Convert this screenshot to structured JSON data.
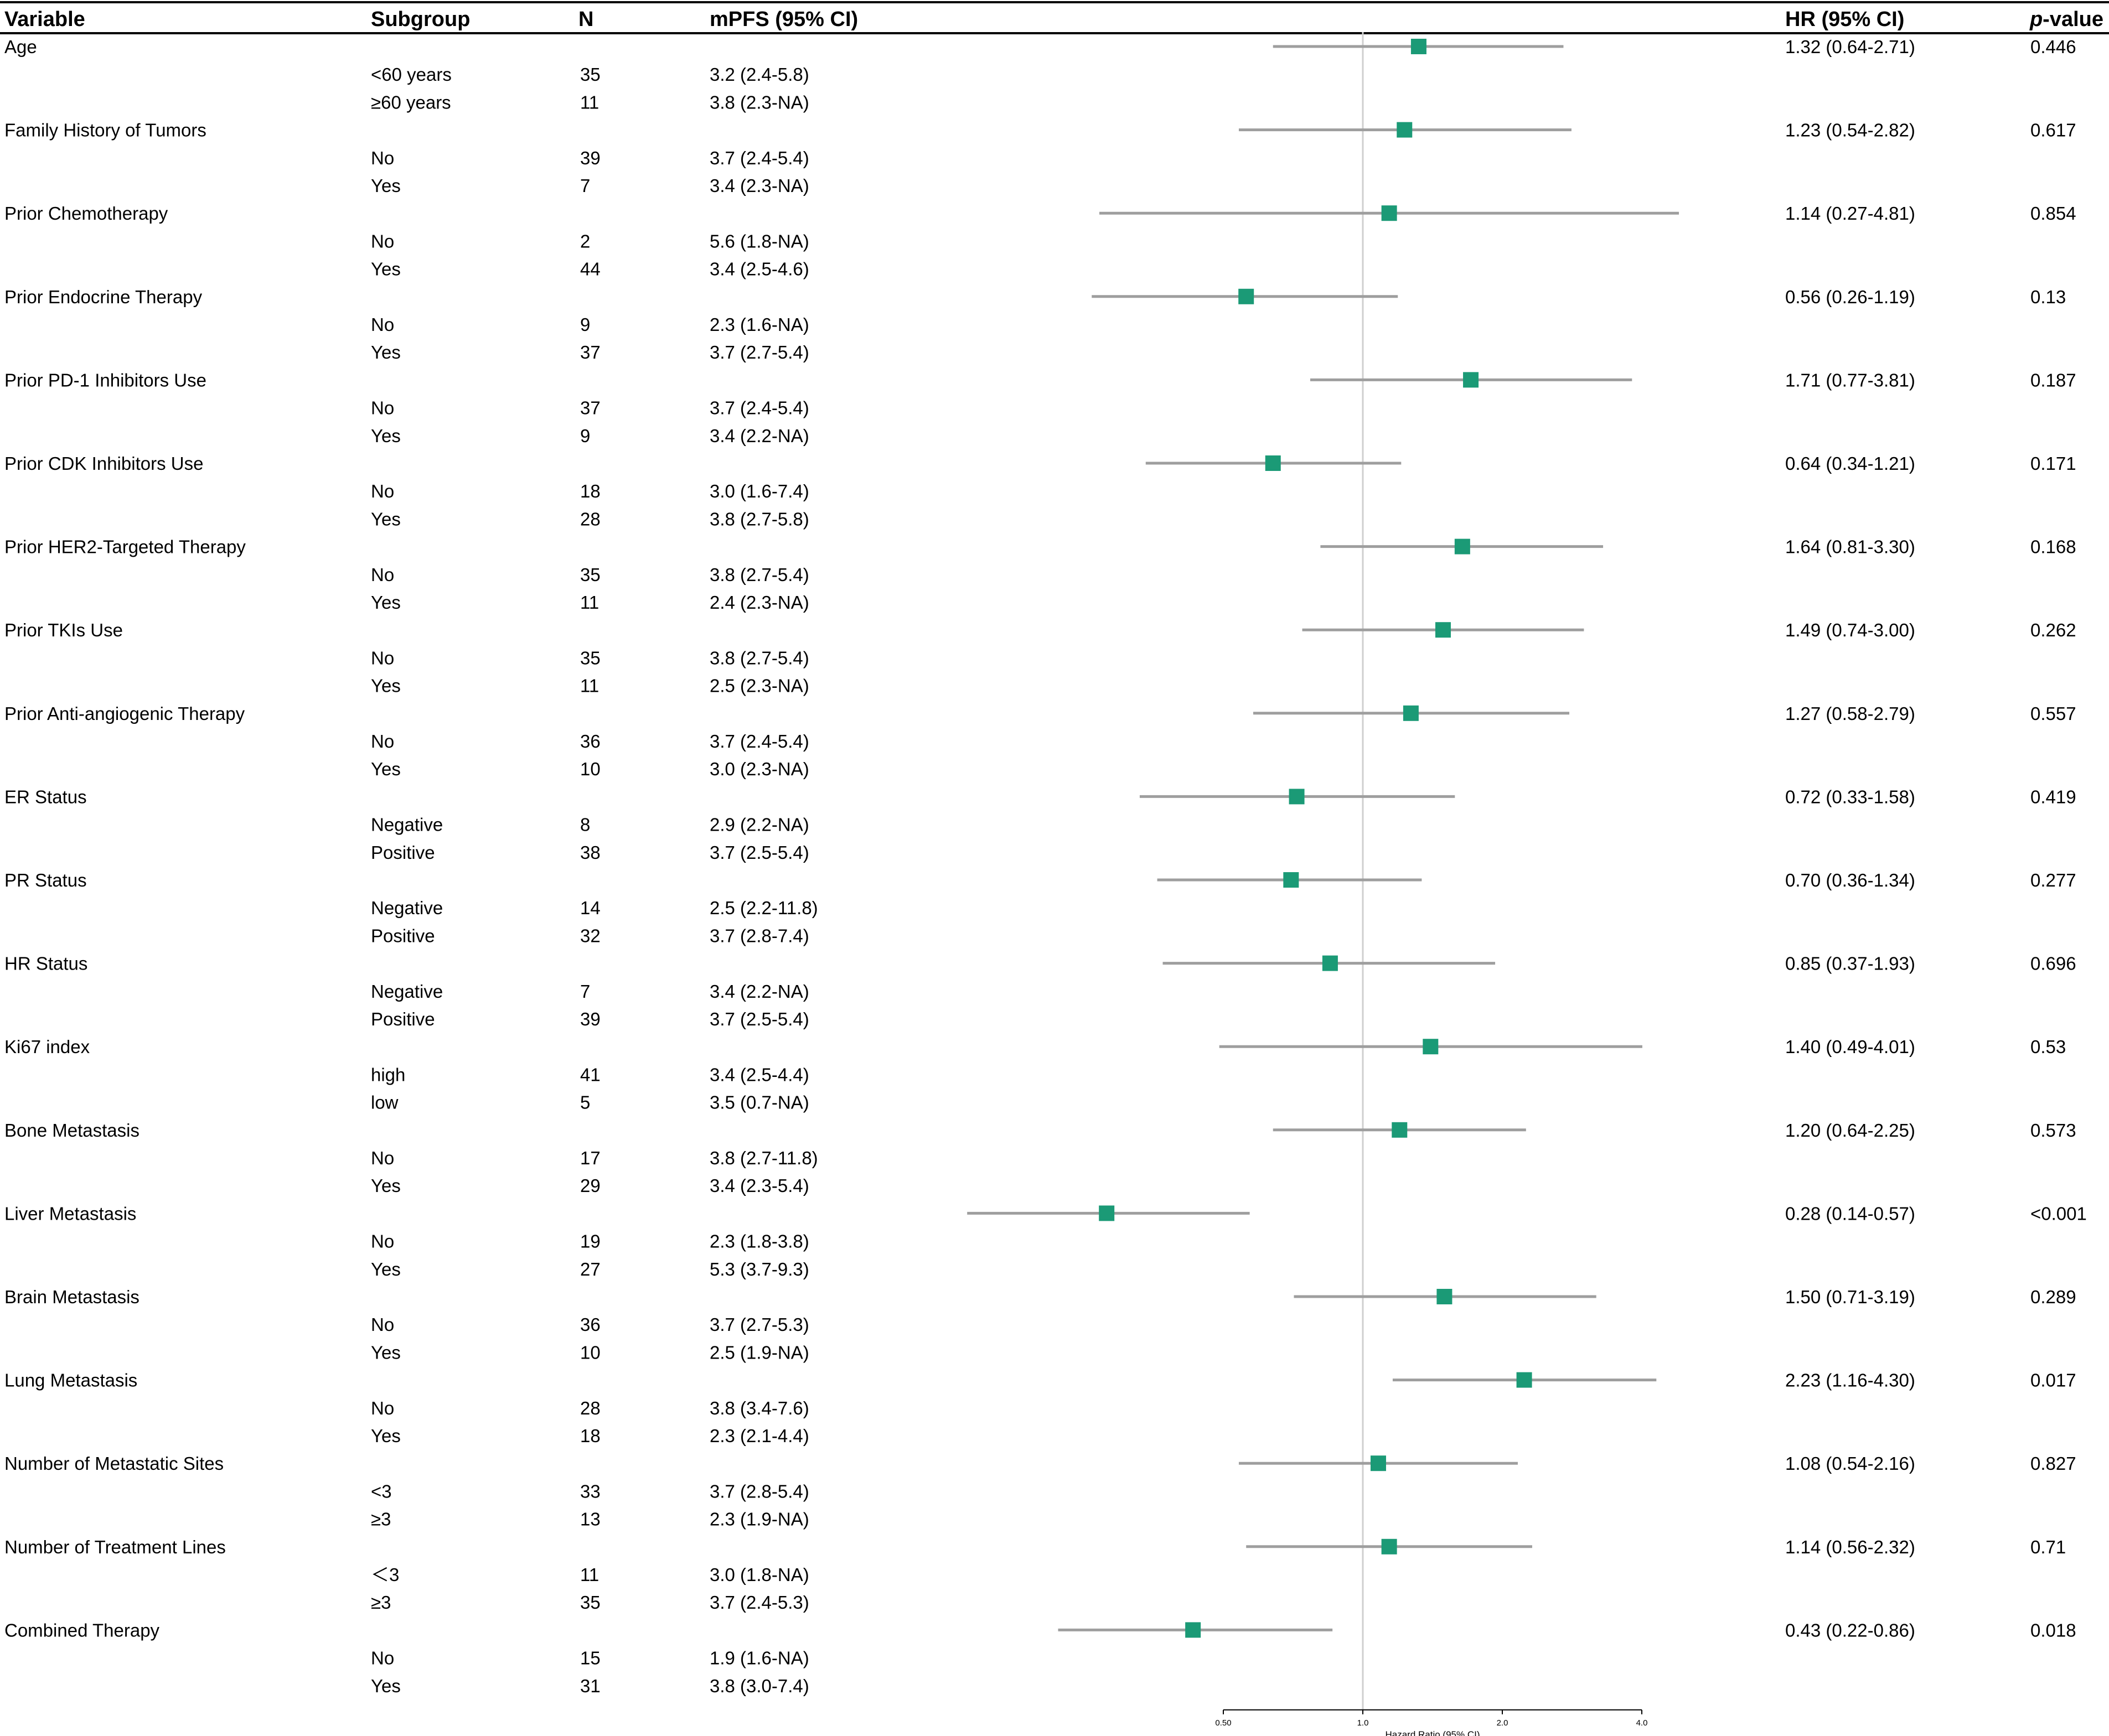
{
  "chart_data": {
    "type": "forest",
    "title": "",
    "x_axis": {
      "label": "Hazard Ratio (95% CI)",
      "scale": "log2",
      "ticks": [
        {
          "value": 0.5,
          "label": "0.50"
        },
        {
          "value": 1.0,
          "label": "1.0"
        },
        {
          "value": 2.0,
          "label": "2.0"
        },
        {
          "value": 4.0,
          "label": "4.0"
        }
      ],
      "reference_line": 1.0
    },
    "colors": {
      "marker": "#1b9a76",
      "ci": "#9e9e9e",
      "refline": "#cfcfcf"
    },
    "headers": {
      "variable": "Variable",
      "subgroup": "Subgroup",
      "n": "N",
      "mpfs": "mPFS (95% CI)",
      "hr": "HR (95% CI)",
      "p_italic": "p",
      "p_rest": "-value"
    },
    "rows": [
      {
        "variable": "Age",
        "hr": 1.32,
        "lo": 0.64,
        "hi": 2.71,
        "hr_text": "1.32 (0.64-2.71)",
        "p": "0.446",
        "subgroups": [
          {
            "name": "<60 years",
            "n": "35",
            "mpfs": "3.2 (2.4-5.8)"
          },
          {
            "name": "≥60 years",
            "n": "11",
            "mpfs": "3.8 (2.3-NA)"
          }
        ]
      },
      {
        "variable": "Family History of Tumors",
        "hr": 1.23,
        "lo": 0.54,
        "hi": 2.82,
        "hr_text": "1.23 (0.54-2.82)",
        "p": "0.617",
        "subgroups": [
          {
            "name": "No",
            "n": "39",
            "mpfs": "3.7 (2.4-5.4)"
          },
          {
            "name": "Yes",
            "n": "7",
            "mpfs": "3.4 (2.3-NA)"
          }
        ]
      },
      {
        "variable": "Prior Chemotherapy",
        "hr": 1.14,
        "lo": 0.27,
        "hi": 4.81,
        "hr_text": "1.14 (0.27-4.81)",
        "p": "0.854",
        "subgroups": [
          {
            "name": "No",
            "n": "2",
            "mpfs": "5.6 (1.8-NA)"
          },
          {
            "name": "Yes",
            "n": "44",
            "mpfs": "3.4 (2.5-4.6)"
          }
        ]
      },
      {
        "variable": "Prior Endocrine Therapy",
        "hr": 0.56,
        "lo": 0.26,
        "hi": 1.19,
        "hr_text": "0.56 (0.26-1.19)",
        "p": "0.13",
        "subgroups": [
          {
            "name": "No",
            "n": "9",
            "mpfs": "2.3 (1.6-NA)"
          },
          {
            "name": "Yes",
            "n": "37",
            "mpfs": "3.7 (2.7-5.4)"
          }
        ]
      },
      {
        "variable": "Prior PD-1 Inhibitors Use",
        "hr": 1.71,
        "lo": 0.77,
        "hi": 3.81,
        "hr_text": "1.71 (0.77-3.81)",
        "p": "0.187",
        "subgroups": [
          {
            "name": "No",
            "n": "37",
            "mpfs": "3.7 (2.4-5.4)"
          },
          {
            "name": "Yes",
            "n": "9",
            "mpfs": "3.4 (2.2-NA)"
          }
        ]
      },
      {
        "variable": "Prior CDK Inhibitors Use",
        "hr": 0.64,
        "lo": 0.34,
        "hi": 1.21,
        "hr_text": "0.64 (0.34-1.21)",
        "p": "0.171",
        "subgroups": [
          {
            "name": "No",
            "n": "18",
            "mpfs": "3.0 (1.6-7.4)"
          },
          {
            "name": "Yes",
            "n": "28",
            "mpfs": "3.8 (2.7-5.8)"
          }
        ]
      },
      {
        "variable": "Prior HER2-Targeted Therapy",
        "hr": 1.64,
        "lo": 0.81,
        "hi": 3.3,
        "hr_text": "1.64 (0.81-3.30)",
        "p": "0.168",
        "subgroups": [
          {
            "name": "No",
            "n": "35",
            "mpfs": "3.8 (2.7-5.4)"
          },
          {
            "name": "Yes",
            "n": "11",
            "mpfs": "2.4 (2.3-NA)"
          }
        ]
      },
      {
        "variable": "Prior TKIs Use",
        "hr": 1.49,
        "lo": 0.74,
        "hi": 3.0,
        "hr_text": "1.49 (0.74-3.00)",
        "p": "0.262",
        "subgroups": [
          {
            "name": "No",
            "n": "35",
            "mpfs": "3.8 (2.7-5.4)"
          },
          {
            "name": "Yes",
            "n": "11",
            "mpfs": "2.5 (2.3-NA)"
          }
        ]
      },
      {
        "variable": "Prior Anti-angiogenic Therapy",
        "hr": 1.27,
        "lo": 0.58,
        "hi": 2.79,
        "hr_text": "1.27 (0.58-2.79)",
        "p": "0.557",
        "subgroups": [
          {
            "name": "No",
            "n": "36",
            "mpfs": "3.7 (2.4-5.4)"
          },
          {
            "name": "Yes",
            "n": "10",
            "mpfs": "3.0 (2.3-NA)"
          }
        ]
      },
      {
        "variable": "ER Status",
        "hr": 0.72,
        "lo": 0.33,
        "hi": 1.58,
        "hr_text": "0.72 (0.33-1.58)",
        "p": "0.419",
        "subgroups": [
          {
            "name": "Negative",
            "n": "8",
            "mpfs": "2.9 (2.2-NA)"
          },
          {
            "name": "Positive",
            "n": "38",
            "mpfs": "3.7 (2.5-5.4)"
          }
        ]
      },
      {
        "variable": "PR Status",
        "hr": 0.7,
        "lo": 0.36,
        "hi": 1.34,
        "hr_text": "0.70 (0.36-1.34)",
        "p": "0.277",
        "subgroups": [
          {
            "name": "Negative",
            "n": "14",
            "mpfs": "2.5 (2.2-11.8)"
          },
          {
            "name": "Positive",
            "n": "32",
            "mpfs": "3.7 (2.8-7.4)"
          }
        ]
      },
      {
        "variable": "HR Status",
        "hr": 0.85,
        "lo": 0.37,
        "hi": 1.93,
        "hr_text": "0.85 (0.37-1.93)",
        "p": "0.696",
        "subgroups": [
          {
            "name": "Negative",
            "n": "7",
            "mpfs": "3.4 (2.2-NA)"
          },
          {
            "name": "Positive",
            "n": "39",
            "mpfs": "3.7 (2.5-5.4)"
          }
        ]
      },
      {
        "variable": "Ki67 index",
        "hr": 1.4,
        "lo": 0.49,
        "hi": 4.01,
        "hr_text": "1.40 (0.49-4.01)",
        "p": "0.53",
        "subgroups": [
          {
            "name": "high",
            "n": "41",
            "mpfs": "3.4 (2.5-4.4)"
          },
          {
            "name": "low",
            "n": "5",
            "mpfs": "3.5 (0.7-NA)"
          }
        ]
      },
      {
        "variable": "Bone Metastasis",
        "hr": 1.2,
        "lo": 0.64,
        "hi": 2.25,
        "hr_text": "1.20 (0.64-2.25)",
        "p": "0.573",
        "subgroups": [
          {
            "name": "No",
            "n": "17",
            "mpfs": "3.8 (2.7-11.8)"
          },
          {
            "name": "Yes",
            "n": "29",
            "mpfs": "3.4 (2.3-5.4)"
          }
        ]
      },
      {
        "variable": "Liver Metastasis",
        "hr": 0.28,
        "lo": 0.14,
        "hi": 0.57,
        "hr_text": "0.28 (0.14-0.57)",
        "p": "<0.001",
        "subgroups": [
          {
            "name": "No",
            "n": "19",
            "mpfs": "2.3 (1.8-3.8)"
          },
          {
            "name": "Yes",
            "n": "27",
            "mpfs": "5.3 (3.7-9.3)"
          }
        ]
      },
      {
        "variable": "Brain Metastasis",
        "hr": 1.5,
        "lo": 0.71,
        "hi": 3.19,
        "hr_text": "1.50 (0.71-3.19)",
        "p": "0.289",
        "subgroups": [
          {
            "name": "No",
            "n": "36",
            "mpfs": "3.7 (2.7-5.3)"
          },
          {
            "name": "Yes",
            "n": "10",
            "mpfs": "2.5 (1.9-NA)"
          }
        ]
      },
      {
        "variable": "Lung Metastasis",
        "hr": 2.23,
        "lo": 1.16,
        "hi": 4.3,
        "hr_text": "2.23 (1.16-4.30)",
        "p": "0.017",
        "subgroups": [
          {
            "name": "No",
            "n": "28",
            "mpfs": "3.8 (3.4-7.6)"
          },
          {
            "name": "Yes",
            "n": "18",
            "mpfs": "2.3 (2.1-4.4)"
          }
        ]
      },
      {
        "variable": "Number of Metastatic Sites",
        "hr": 1.08,
        "lo": 0.54,
        "hi": 2.16,
        "hr_text": "1.08 (0.54-2.16)",
        "p": "0.827",
        "subgroups": [
          {
            "name": "<3",
            "n": "33",
            "mpfs": "3.7 (2.8-5.4)"
          },
          {
            "name": "≥3",
            "n": "13",
            "mpfs": "2.3 (1.9-NA)"
          }
        ]
      },
      {
        "variable": "Number of Treatment Lines",
        "hr": 1.14,
        "lo": 0.56,
        "hi": 2.32,
        "hr_text": "1.14 (0.56-2.32)",
        "p": "0.71",
        "subgroups": [
          {
            "name": "＜3",
            "n": "11",
            "mpfs": "3.0 (1.8-NA)"
          },
          {
            "name": "≥3",
            "n": "35",
            "mpfs": "3.7 (2.4-5.3)"
          }
        ]
      },
      {
        "variable": "Combined Therapy",
        "hr": 0.43,
        "lo": 0.22,
        "hi": 0.86,
        "hr_text": "0.43 (0.22-0.86)",
        "p": "0.018",
        "subgroups": [
          {
            "name": "No",
            "n": "15",
            "mpfs": "1.9 (1.6-NA)"
          },
          {
            "name": "Yes",
            "n": "31",
            "mpfs": "3.8 (3.0-7.4)"
          }
        ]
      }
    ]
  }
}
